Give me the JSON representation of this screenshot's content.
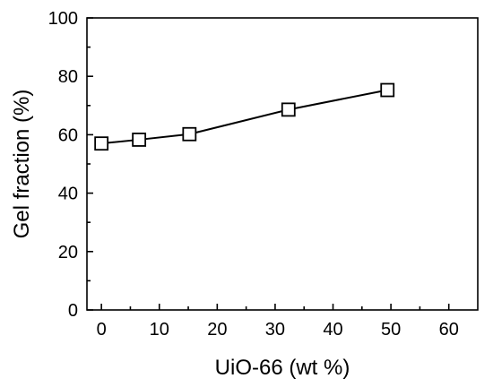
{
  "chart_data": {
    "type": "line",
    "title": "",
    "xlabel": "UiO-66 (wt %)",
    "ylabel": "Gel fraction (%)",
    "xlim": [
      -2.5,
      65
    ],
    "ylim": [
      0,
      100
    ],
    "xticks": [
      0,
      10,
      20,
      30,
      40,
      50,
      60
    ],
    "yticks": [
      0,
      20,
      40,
      60,
      80,
      100
    ],
    "grid": false,
    "marker": "open-square",
    "series": [
      {
        "x": [
          0,
          6.5,
          15.2,
          32.3,
          49.4
        ],
        "y": [
          57.0,
          58.3,
          60.2,
          68.6,
          75.3
        ]
      }
    ]
  }
}
